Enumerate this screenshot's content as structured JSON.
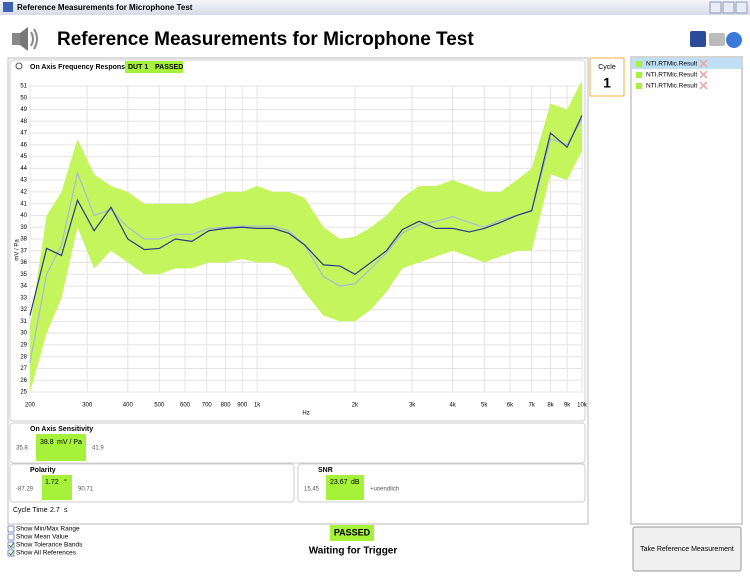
{
  "window": {
    "title": "Reference Measurements for Microphone Test"
  },
  "header": {
    "title": "Reference Measurements for Microphone Test"
  },
  "panel": {
    "title": "On Axis Frequency Response",
    "dut": "DUT 1",
    "status": "PASSED"
  },
  "cycle": {
    "label": "Cycle",
    "value": "1"
  },
  "chart_data": {
    "type": "line",
    "xlabel": "Hz",
    "ylabel": "mV / Pa",
    "log_x": true,
    "grid": true,
    "xlim": [
      200,
      10000
    ],
    "ylim": [
      25,
      51
    ],
    "xticks": [
      200,
      300,
      400,
      500,
      600,
      700,
      800,
      900,
      {
        "value": 1000,
        "label": "1k"
      },
      {
        "value": 2000,
        "label": "2k"
      },
      {
        "value": 3000,
        "label": "3k"
      },
      {
        "value": 4000,
        "label": "4k"
      },
      {
        "value": 5000,
        "label": "5k"
      },
      {
        "value": 6000,
        "label": "6k"
      },
      {
        "value": 7000,
        "label": "7k"
      },
      {
        "value": 8000,
        "label": "8k"
      },
      {
        "value": 9000,
        "label": "9k"
      },
      {
        "value": 10000,
        "label": "10k"
      }
    ],
    "yticks": [
      25,
      26,
      27,
      28,
      29,
      30,
      31,
      32,
      33,
      34,
      35,
      36,
      37,
      38,
      39,
      40,
      41,
      42,
      43,
      44,
      45,
      46,
      47,
      48,
      49,
      50,
      51
    ],
    "x": [
      200,
      225,
      250,
      280,
      315,
      355,
      400,
      450,
      500,
      560,
      630,
      710,
      800,
      900,
      1000,
      1120,
      1250,
      1400,
      1600,
      1800,
      2000,
      2240,
      2500,
      2800,
      3150,
      3550,
      4000,
      4500,
      5000,
      5600,
      6300,
      7000,
      8000,
      9000,
      10000
    ],
    "band": {
      "color": "#c4f55c",
      "upper": [
        30.5,
        40,
        42,
        46.5,
        43.5,
        42.5,
        42,
        41,
        41,
        41,
        41,
        41.5,
        42,
        42,
        42.5,
        42,
        42,
        41.5,
        39,
        38,
        38.2,
        39,
        40,
        41.5,
        42.5,
        42.5,
        43,
        42.5,
        42,
        42,
        43,
        44,
        49.5,
        49,
        51.5
      ],
      "lower": [
        25,
        30,
        33,
        39,
        35.5,
        37,
        36,
        35,
        35,
        35.5,
        35.5,
        36,
        36,
        36.3,
        36,
        36,
        35.5,
        33.5,
        31.5,
        31,
        31,
        32,
        33.5,
        35.5,
        36,
        36.5,
        37,
        36.5,
        36,
        36.5,
        37,
        37,
        43.5,
        43,
        45.5
      ]
    },
    "series": [
      {
        "color": "#a8b8d8",
        "values": [
          27.5,
          35,
          37.5,
          43.6,
          40,
          40.5,
          39,
          38,
          38,
          38.4,
          38.4,
          38.9,
          39,
          39.1,
          39.1,
          39.1,
          38.7,
          37.5,
          34.8,
          34,
          34.2,
          35.5,
          36.8,
          38.5,
          39.2,
          39.5,
          39.9,
          39.4,
          39,
          39.6,
          40,
          40.4,
          46.5,
          46,
          48.2
        ]
      },
      {
        "color": "#2a3a8a",
        "values": [
          31.5,
          37.2,
          36.6,
          41.3,
          38.7,
          40.7,
          38,
          37.1,
          37.2,
          38,
          37.8,
          38.7,
          38.9,
          39,
          38.9,
          38.9,
          38.5,
          37.5,
          35.8,
          35.7,
          35,
          36,
          37,
          38.8,
          39.5,
          38.9,
          38.9,
          38.6,
          38.9,
          39.4,
          40,
          40.4,
          47,
          45.8,
          48.5
        ]
      }
    ]
  },
  "sensitivity": {
    "title": "On Axis Sensitivity",
    "min": "35.8",
    "value": "38.8",
    "unit": "mV / Pa",
    "max": "41.9"
  },
  "polarity": {
    "title": "Polarity",
    "min": "-87.29",
    "value": "1.72",
    "unit": "°",
    "max": "90.71"
  },
  "snr": {
    "title": "SNR",
    "min": "15.45",
    "value": "23.67",
    "unit": "dB",
    "max": "+unendlich"
  },
  "cycle_time": {
    "label": "Cycle Time",
    "value": "2.7",
    "unit": "s"
  },
  "options": [
    {
      "label": "Show Min/Max Range",
      "checked": false
    },
    {
      "label": "Show Mean Value",
      "checked": false
    },
    {
      "label": "Show Tolerance Bands",
      "checked": true
    },
    {
      "label": "Show All References",
      "checked": true
    }
  ],
  "status": {
    "result": "PASSED",
    "message": "Waiting for Trigger"
  },
  "results": [
    "NTI.RTMic.Result",
    "NTI.RTMic.Result",
    "NTI.RTMic.Result"
  ],
  "button": "Take Reference Measurement"
}
